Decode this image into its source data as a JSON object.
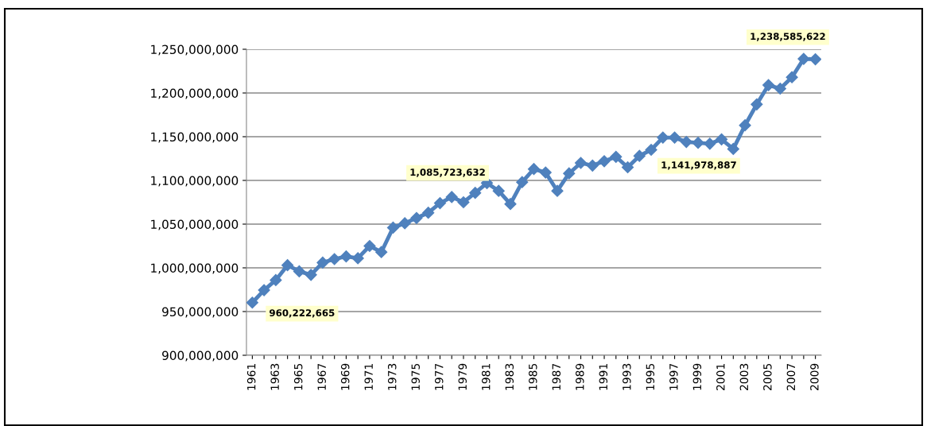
{
  "chart_data": {
    "type": "line",
    "categories": [
      "1961",
      null,
      "1963",
      null,
      "1965",
      null,
      "1967",
      null,
      "1969",
      null,
      "1971",
      null,
      "1973",
      null,
      "1975",
      null,
      "1977",
      null,
      "1979",
      null,
      "1981",
      null,
      "1983",
      null,
      "1985",
      null,
      "1987",
      null,
      "1989",
      null,
      "1991",
      null,
      "1993",
      null,
      "1995",
      null,
      "1997",
      null,
      "1999",
      null,
      "2001",
      null,
      "2003",
      null,
      "2005",
      null,
      "2007",
      null,
      "2009"
    ],
    "series": [
      {
        "color": "#4f81bd",
        "values": [
          960222665,
          974500000,
          986000000,
          1003000000,
          996000000,
          992000000,
          1006000000,
          1010000000,
          1013000000,
          1011000000,
          1025000000,
          1018000000,
          1046000000,
          1051000000,
          1057000000,
          1063000000,
          1074000000,
          1081000000,
          1075000000,
          1085723632,
          1097000000,
          1088000000,
          1073000000,
          1098000000,
          1113000000,
          1109000000,
          1088000000,
          1108000000,
          1120000000,
          1117000000,
          1122000000,
          1127000000,
          1115000000,
          1128000000,
          1135000000,
          1149000000,
          1149000000,
          1144000000,
          1143000000,
          1141978887,
          1147000000,
          1136000000,
          1163000000,
          1187000000,
          1209000000,
          1205000000,
          1218000000,
          1239000000,
          1238585622
        ],
        "value_labels": [
          "960,222,665",
          null,
          null,
          null,
          null,
          null,
          null,
          null,
          null,
          null,
          null,
          null,
          null,
          null,
          null,
          null,
          null,
          null,
          null,
          "1,085,723,632",
          null,
          null,
          null,
          null,
          null,
          null,
          null,
          null,
          null,
          null,
          null,
          null,
          null,
          null,
          null,
          null,
          null,
          null,
          null,
          "1,141,978,887",
          null,
          null,
          null,
          null,
          null,
          null,
          null,
          null,
          "1,238,585,622"
        ]
      }
    ],
    "ylim": [
      900000000,
      1250000000
    ],
    "yticks": [
      {
        "value": 900000000,
        "label": "900,000,000"
      },
      {
        "value": 950000000,
        "label": "950,000,000"
      },
      {
        "value": 1000000000,
        "label": "1,000,000,000"
      },
      {
        "value": 1050000000,
        "label": "1,050,000,000"
      },
      {
        "value": 1100000000,
        "label": "1,100,000,000"
      },
      {
        "value": 1150000000,
        "label": "1,150,000,000"
      },
      {
        "value": 1200000000,
        "label": "1,200,000,000"
      },
      {
        "value": 1250000000,
        "label": "1,250,000,000"
      }
    ],
    "grid": "y",
    "marker": "diamond",
    "line_style": "solid",
    "legend": false
  }
}
